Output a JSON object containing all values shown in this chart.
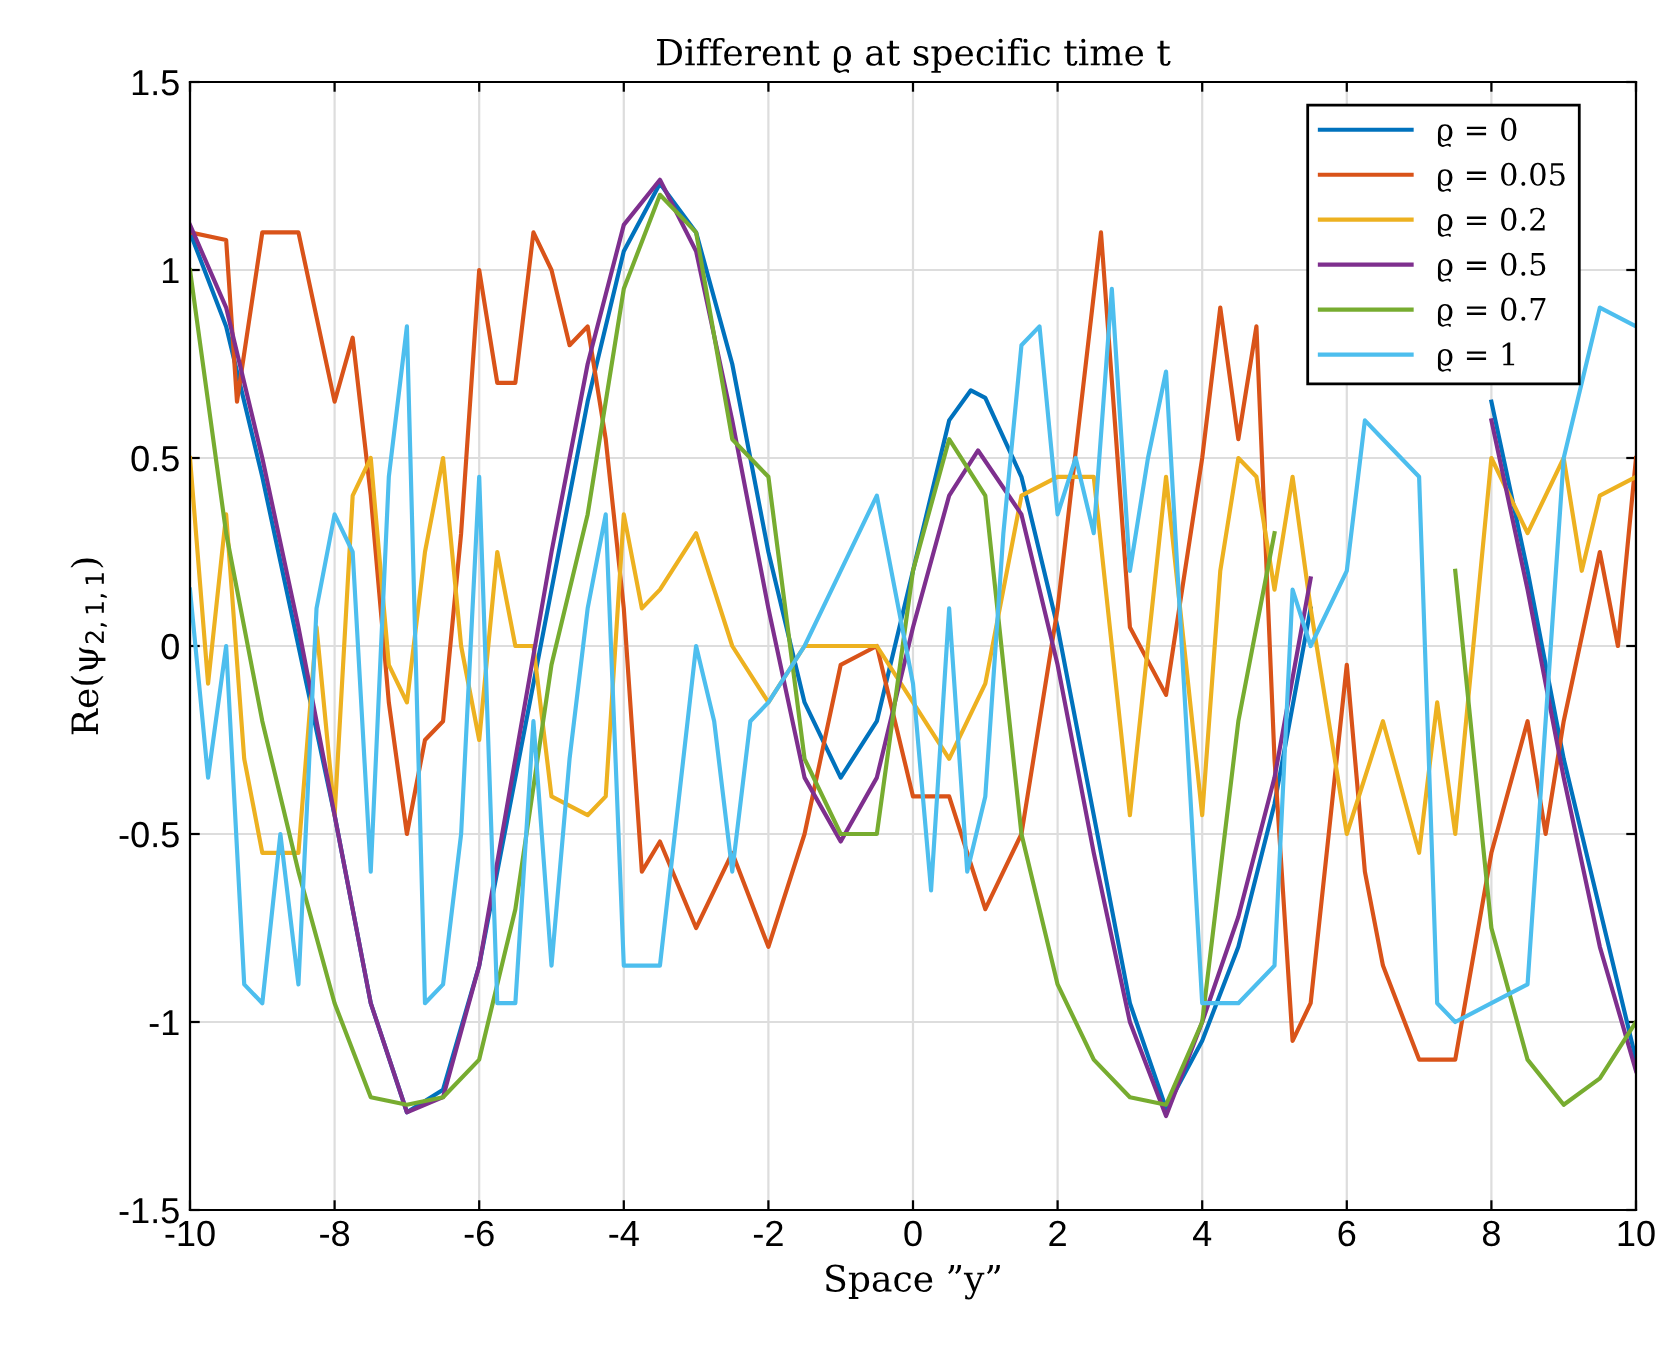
{
  "chart_data": {
    "type": "line",
    "title": "Different ϱ at specific time t",
    "xlabel": "Space ”y”",
    "ylabel": "Re(ψ$_{2,1,1}$)",
    "xlim": [
      -10,
      10
    ],
    "ylim": [
      -1.5,
      1.5
    ],
    "xticks": [
      -10,
      -8,
      -6,
      -4,
      -2,
      0,
      2,
      4,
      6,
      8,
      10
    ],
    "yticks": [
      -1.5,
      -1,
      -0.5,
      0,
      0.5,
      1,
      1.5
    ],
    "grid": true,
    "legend": "top right",
    "line_style": "solid",
    "marker": "none",
    "series": [
      {
        "name": "ϱ = 0",
        "color": "#0072bd",
        "x": [
          -10,
          -9.5,
          -9,
          -8.5,
          -8,
          -7.5,
          -7,
          -6.5,
          -6,
          -5.5,
          -5,
          -4.5,
          -4,
          -3.5,
          -3,
          -2.5,
          -2,
          -1.5,
          -1,
          -0.5,
          0,
          0.5,
          0.8,
          1,
          1.5,
          2,
          2.5,
          3,
          3.5,
          4,
          4.5,
          5,
          5.5,
          6,
          6.5,
          7,
          7.5,
          8,
          8.5,
          9,
          9.5,
          10
        ],
        "values": [
          1.1,
          0.85,
          0.45,
          0.0,
          -0.45,
          -0.95,
          -1.24,
          -1.18,
          -0.85,
          -0.35,
          0.15,
          0.65,
          1.05,
          1.23,
          1.1,
          0.75,
          0.25,
          -0.15,
          -0.35,
          -0.2,
          0.2,
          0.6,
          0.68,
          0.66,
          0.45,
          0.05,
          -0.45,
          -0.95,
          -1.23,
          -1.05,
          -0.8,
          -0.42,
          0.1,
          null,
          null,
          null,
          null,
          0.65,
          0.2,
          -0.3,
          -0.7,
          -1.1
        ]
      },
      {
        "name": "ϱ = 0.05",
        "color": "#d95319",
        "x": [
          -10,
          -9.5,
          -9.35,
          -9,
          -8.5,
          -8,
          -7.75,
          -7.5,
          -7.25,
          -7,
          -6.75,
          -6.5,
          -6.25,
          -6,
          -5.75,
          -5.5,
          -5.25,
          -5,
          -4.75,
          -4.5,
          -4.25,
          -4,
          -3.75,
          -3.5,
          -3,
          -2.5,
          -2,
          -1.5,
          -1,
          -0.5,
          0,
          0.5,
          1,
          1.5,
          2,
          2.6,
          3,
          3.5,
          4,
          4.25,
          4.5,
          4.75,
          5,
          5.25,
          5.5,
          6,
          6.25,
          6.5,
          7,
          7.5,
          8,
          8.5,
          8.75,
          9,
          9.5,
          9.75,
          10
        ],
        "values": [
          1.1,
          1.08,
          0.65,
          1.1,
          1.1,
          0.65,
          0.82,
          0.4,
          -0.15,
          -0.5,
          -0.25,
          -0.2,
          0.3,
          1.0,
          0.7,
          0.7,
          1.1,
          1.0,
          0.8,
          0.85,
          0.55,
          0.1,
          -0.6,
          -0.52,
          -0.75,
          -0.55,
          -0.8,
          -0.5,
          -0.05,
          0.0,
          -0.4,
          -0.4,
          -0.7,
          -0.5,
          0.1,
          1.1,
          0.05,
          -0.13,
          0.5,
          0.9,
          0.55,
          0.85,
          -0.3,
          -1.05,
          -0.95,
          -0.05,
          -0.6,
          -0.85,
          -1.1,
          -1.1,
          -0.55,
          -0.2,
          -0.5,
          -0.2,
          0.25,
          0.0,
          0.5
        ]
      },
      {
        "name": "ϱ = 0.2",
        "color": "#edb120",
        "x": [
          -10,
          -9.75,
          -9.5,
          -9.25,
          -9,
          -8.5,
          -8.25,
          -8,
          -7.75,
          -7.5,
          -7.25,
          -7,
          -6.75,
          -6.5,
          -6.25,
          -6,
          -5.75,
          -5.5,
          -5.25,
          -5,
          -4.5,
          -4.25,
          -4,
          -3.75,
          -3.5,
          -3,
          -2.5,
          -2,
          -1.5,
          -1,
          -0.5,
          0,
          0.5,
          1,
          1.5,
          2,
          2.5,
          3,
          3.5,
          4,
          4.25,
          4.5,
          4.75,
          5,
          5.25,
          5.5,
          6,
          6.5,
          7,
          7.25,
          7.5,
          8,
          8.5,
          9,
          9.25,
          9.5,
          10
        ],
        "values": [
          0.5,
          -0.1,
          0.35,
          -0.3,
          -0.55,
          -0.55,
          0.05,
          -0.45,
          0.4,
          0.5,
          -0.05,
          -0.15,
          0.25,
          0.5,
          0.0,
          -0.25,
          0.25,
          0.0,
          0.0,
          -0.4,
          -0.45,
          -0.4,
          0.35,
          0.1,
          0.15,
          0.3,
          0.0,
          -0.15,
          0.0,
          0.0,
          0.0,
          -0.15,
          -0.3,
          -0.1,
          0.4,
          0.45,
          0.45,
          -0.45,
          0.45,
          -0.45,
          0.2,
          0.5,
          0.45,
          0.15,
          0.45,
          0.1,
          -0.5,
          -0.2,
          -0.55,
          -0.15,
          -0.5,
          0.5,
          0.3,
          0.5,
          0.2,
          0.4,
          0.45
        ]
      },
      {
        "name": "ϱ = 0.5",
        "color": "#7e2f8e",
        "x": [
          -10,
          -9.5,
          -9,
          -8.5,
          -8,
          -7.5,
          -7,
          -6.5,
          -6,
          -5.5,
          -5,
          -4.5,
          -4,
          -3.5,
          -3,
          -2.5,
          -2,
          -1.5,
          -1,
          -0.5,
          0,
          0.5,
          0.9,
          1.5,
          2,
          2.5,
          3,
          3.5,
          4,
          4.5,
          5,
          5.5,
          6,
          6.5,
          7,
          7.5,
          8,
          8.5,
          9,
          9.5,
          10
        ],
        "values": [
          1.12,
          0.9,
          0.5,
          0.05,
          -0.45,
          -0.95,
          -1.24,
          -1.2,
          -0.85,
          -0.3,
          0.25,
          0.75,
          1.12,
          1.24,
          1.05,
          0.6,
          0.1,
          -0.35,
          -0.52,
          -0.35,
          0.05,
          0.4,
          0.52,
          0.35,
          -0.05,
          -0.55,
          -1.0,
          -1.25,
          -1.0,
          -0.72,
          -0.35,
          0.18,
          null,
          null,
          null,
          null,
          0.6,
          0.15,
          -0.35,
          -0.8,
          -1.13
        ]
      },
      {
        "name": "ϱ = 0.7",
        "color": "#77ac30",
        "x": [
          -10,
          -9.5,
          -9,
          -8.5,
          -8,
          -7.5,
          -7,
          -6.5,
          -6,
          -5.5,
          -5,
          -4.5,
          -4,
          -3.5,
          -3,
          -2.5,
          -2,
          -1.5,
          -1,
          -0.5,
          0,
          0.5,
          1,
          1.5,
          2,
          2.5,
          3,
          3.5,
          4,
          4.5,
          5,
          5.5,
          6,
          6.5,
          7,
          7.5,
          8,
          8.5,
          9,
          9.5,
          10
        ],
        "values": [
          1.0,
          0.3,
          -0.2,
          -0.6,
          -0.95,
          -1.2,
          -1.22,
          -1.2,
          -1.1,
          -0.7,
          -0.05,
          0.35,
          0.95,
          1.2,
          1.1,
          0.55,
          0.45,
          -0.3,
          -0.5,
          -0.5,
          0.2,
          0.55,
          0.4,
          -0.5,
          -0.9,
          -1.1,
          -1.2,
          -1.22,
          -1.0,
          -0.2,
          0.3,
          null,
          null,
          null,
          null,
          0.2,
          -0.75,
          -1.1,
          -1.22,
          -1.15,
          -1.0
        ]
      },
      {
        "name": "ϱ = 1",
        "color": "#4dbeee",
        "x": [
          -10,
          -9.75,
          -9.5,
          -9.25,
          -9,
          -8.75,
          -8.5,
          -8.25,
          -8,
          -7.75,
          -7.5,
          -7.25,
          -7,
          -6.75,
          -6.5,
          -6.25,
          -6,
          -5.75,
          -5.5,
          -5.25,
          -5,
          -4.75,
          -4.5,
          -4.25,
          -4,
          -3.5,
          -3,
          -2.75,
          -2.5,
          -2.25,
          -2,
          -1.5,
          -1,
          -0.5,
          0,
          0.25,
          0.5,
          0.75,
          1,
          1.25,
          1.5,
          1.75,
          2,
          2.25,
          2.5,
          2.75,
          3,
          3.25,
          3.5,
          4,
          4.5,
          5,
          5.25,
          5.5,
          6,
          6.25,
          6.5,
          7,
          7.25,
          7.5,
          8,
          8.5,
          9,
          9.5,
          10
        ],
        "values": [
          0.15,
          -0.35,
          0.0,
          -0.9,
          -0.95,
          -0.5,
          -0.9,
          0.1,
          0.35,
          0.25,
          -0.6,
          0.45,
          0.85,
          -0.95,
          -0.9,
          -0.5,
          0.45,
          -0.95,
          -0.95,
          -0.2,
          -0.85,
          -0.3,
          0.1,
          0.35,
          -0.85,
          -0.85,
          0.0,
          -0.2,
          -0.6,
          -0.2,
          -0.15,
          0.0,
          0.2,
          0.4,
          -0.1,
          -0.65,
          0.1,
          -0.6,
          -0.4,
          0.3,
          0.8,
          0.85,
          0.35,
          0.5,
          0.3,
          0.95,
          0.2,
          0.5,
          0.73,
          -0.95,
          -0.95,
          -0.85,
          0.15,
          0.0,
          0.2,
          0.6,
          0.55,
          0.45,
          -0.95,
          -1.0,
          -0.95,
          -0.9,
          0.5,
          0.9,
          0.85
        ]
      }
    ]
  }
}
